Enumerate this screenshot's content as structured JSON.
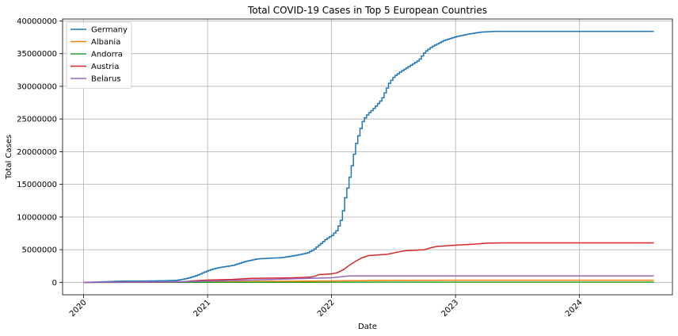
{
  "chart_data": {
    "type": "line",
    "title": "Total COVID-19 Cases in Top 5 European Countries",
    "xlabel": "Date",
    "ylabel": "Total Cases",
    "xlim": [
      2019.83,
      2024.75
    ],
    "ylim": [
      -1900000,
      40300000
    ],
    "x_ticks": [
      2020,
      2021,
      2022,
      2023,
      2024
    ],
    "x_tick_labels": [
      "2020",
      "2021",
      "2022",
      "2023",
      "2024"
    ],
    "y_ticks": [
      0,
      5000000,
      10000000,
      15000000,
      20000000,
      25000000,
      30000000,
      35000000,
      40000000
    ],
    "y_tick_labels": [
      "0",
      "5000000",
      "10000000",
      "15000000",
      "20000000",
      "25000000",
      "30000000",
      "35000000",
      "40000000"
    ],
    "grid": true,
    "legend_position": "top-left",
    "series": [
      {
        "name": "Germany",
        "color": "#1f77b4",
        "step": true,
        "x": [
          2020.0,
          2020.17,
          2020.25,
          2020.33,
          2020.5,
          2020.67,
          2020.75,
          2020.83,
          2020.9,
          2020.95,
          2021.0,
          2021.05,
          2021.1,
          2021.2,
          2021.3,
          2021.4,
          2021.5,
          2021.6,
          2021.7,
          2021.8,
          2021.85,
          2021.9,
          2021.95,
          2022.0,
          2022.04,
          2022.08,
          2022.1,
          2022.13,
          2022.16,
          2022.19,
          2022.22,
          2022.25,
          2022.29,
          2022.33,
          2022.4,
          2022.46,
          2022.5,
          2022.55,
          2022.6,
          2022.7,
          2022.75,
          2022.8,
          2022.85,
          2022.9,
          2023.0,
          2023.1,
          2023.2,
          2023.3,
          2023.5,
          2024.0,
          2024.6
        ],
        "y": [
          0,
          100000,
          170000,
          200000,
          210000,
          260000,
          320000,
          600000,
          1000000,
          1400000,
          1800000,
          2100000,
          2300000,
          2600000,
          3200000,
          3600000,
          3700000,
          3800000,
          4100000,
          4500000,
          5000000,
          5800000,
          6600000,
          7200000,
          8000000,
          10000000,
          12500000,
          15000000,
          18000000,
          21000000,
          23000000,
          24800000,
          25800000,
          26500000,
          28000000,
          30500000,
          31500000,
          32200000,
          32800000,
          34000000,
          35300000,
          36000000,
          36500000,
          37000000,
          37600000,
          38000000,
          38300000,
          38400000,
          38400000,
          38400000,
          38400000
        ]
      },
      {
        "name": "Albania",
        "color": "#ff7f0e",
        "step": false,
        "x": [
          2020.0,
          2020.5,
          2020.8,
          2021.0,
          2021.3,
          2021.8,
          2022.0,
          2022.3,
          2022.6,
          2023.0,
          2024.6
        ],
        "y": [
          0,
          3000,
          15000,
          60000,
          130000,
          195000,
          215000,
          275000,
          320000,
          334000,
          335000
        ]
      },
      {
        "name": "Andorra",
        "color": "#2ca02c",
        "step": false,
        "x": [
          2020.0,
          2020.8,
          2021.0,
          2021.8,
          2022.0,
          2022.3,
          2023.0,
          2024.6
        ],
        "y": [
          0,
          5000,
          8000,
          17000,
          26000,
          40000,
          48000,
          48000
        ]
      },
      {
        "name": "Austria",
        "color": "#d62728",
        "step": false,
        "x": [
          2020.0,
          2020.5,
          2020.8,
          2020.9,
          2021.0,
          2021.2,
          2021.35,
          2021.5,
          2021.7,
          2021.8,
          2021.85,
          2021.9,
          2022.0,
          2022.05,
          2022.1,
          2022.15,
          2022.2,
          2022.25,
          2022.3,
          2022.45,
          2022.55,
          2022.6,
          2022.75,
          2022.8,
          2022.85,
          2023.0,
          2023.15,
          2023.25,
          2023.4,
          2024.6
        ],
        "y": [
          0,
          20000,
          100000,
          250000,
          360000,
          450000,
          620000,
          650000,
          700000,
          780000,
          850000,
          1200000,
          1300000,
          1500000,
          2000000,
          2700000,
          3300000,
          3800000,
          4100000,
          4300000,
          4700000,
          4850000,
          5000000,
          5300000,
          5500000,
          5700000,
          5850000,
          6000000,
          6050000,
          6050000
        ]
      },
      {
        "name": "Belarus",
        "color": "#9467bd",
        "step": false,
        "x": [
          2020.0,
          2020.5,
          2020.8,
          2021.0,
          2021.5,
          2021.8,
          2022.0,
          2022.1,
          2022.15,
          2023.0,
          2024.6
        ],
        "y": [
          0,
          60000,
          110000,
          200000,
          430000,
          600000,
          700000,
          900000,
          990000,
          994000,
          995000
        ]
      }
    ]
  }
}
